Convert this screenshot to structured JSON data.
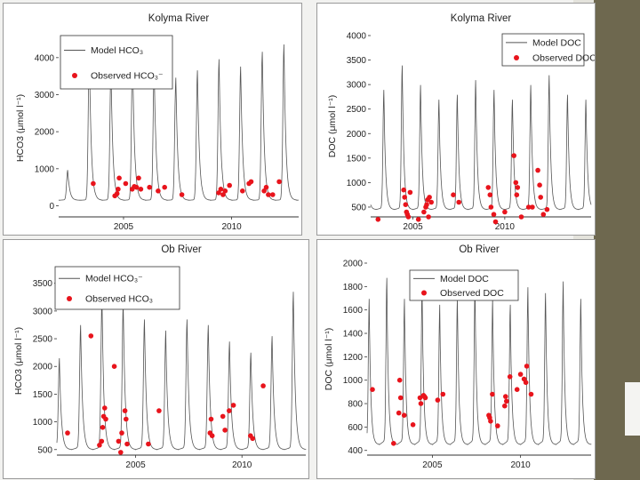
{
  "colors": {
    "model": "#555555",
    "observed": "#e8141c"
  },
  "chart_data": [
    {
      "id": "kolyma-hco3",
      "type": "line",
      "title": "Kolyma River",
      "ylabel": "HCO3 (μmol l⁻¹)",
      "xlabel": "",
      "ylim": [
        -300,
        4500
      ],
      "xlim": [
        2002.0,
        2013.1
      ],
      "yticks": [
        0,
        1000,
        2000,
        3000,
        4000
      ],
      "xticks": [
        2005,
        2010
      ],
      "legend": {
        "position": "top-left",
        "model_label": "Model HCO₃",
        "observed_label": "Observed HCO₃⁻"
      },
      "model": {
        "base": 150,
        "amps": [
          800,
          4000,
          3600,
          4000,
          3600,
          3300,
          3500,
          3800,
          3600,
          4000,
          4200,
          3000
        ]
      },
      "series": [
        {
          "name": "Observed HCO3",
          "points": [
            [
              2003.6,
              600
            ],
            [
              2004.6,
              270
            ],
            [
              2004.7,
              330
            ],
            [
              2004.75,
              450
            ],
            [
              2004.8,
              750
            ],
            [
              2005.1,
              600
            ],
            [
              2005.4,
              450
            ],
            [
              2005.5,
              520
            ],
            [
              2005.6,
              500
            ],
            [
              2005.7,
              750
            ],
            [
              2005.8,
              450
            ],
            [
              2006.2,
              500
            ],
            [
              2006.6,
              400
            ],
            [
              2006.9,
              500
            ],
            [
              2007.7,
              300
            ],
            [
              2009.4,
              350
            ],
            [
              2009.5,
              450
            ],
            [
              2009.6,
              300
            ],
            [
              2009.7,
              400
            ],
            [
              2009.9,
              550
            ],
            [
              2010.5,
              400
            ],
            [
              2010.8,
              600
            ],
            [
              2010.9,
              650
            ],
            [
              2011.5,
              400
            ],
            [
              2011.6,
              500
            ],
            [
              2011.7,
              300
            ],
            [
              2011.9,
              300
            ],
            [
              2012.2,
              650
            ]
          ]
        }
      ]
    },
    {
      "id": "kolyma-doc",
      "type": "line",
      "title": "Kolyma River",
      "ylabel": "DOC (μmol l⁻¹)",
      "xlabel": "",
      "ylim": [
        300,
        4000
      ],
      "xlim": [
        2002.7,
        2014.7
      ],
      "yticks": [
        500,
        1000,
        1500,
        2000,
        2500,
        3000,
        3500,
        4000
      ],
      "xticks": [
        2005,
        2010
      ],
      "legend": {
        "position": "top-right",
        "model_label": "Model DOC",
        "observed_label": "Observed DOC"
      },
      "model": {
        "base": 450,
        "amps": [
          2200,
          2400,
          2900,
          2500,
          2200,
          2300,
          2600,
          2400,
          2200,
          2500,
          2700,
          2300
        ]
      },
      "series": [
        {
          "name": "Observed DOC",
          "points": [
            [
              2003.1,
              250
            ],
            [
              2004.5,
              850
            ],
            [
              2004.55,
              700
            ],
            [
              2004.6,
              550
            ],
            [
              2004.65,
              400
            ],
            [
              2004.7,
              350
            ],
            [
              2004.75,
              300
            ],
            [
              2004.85,
              800
            ],
            [
              2005.3,
              250
            ],
            [
              2005.6,
              400
            ],
            [
              2005.7,
              500
            ],
            [
              2005.75,
              550
            ],
            [
              2005.8,
              650
            ],
            [
              2005.85,
              300
            ],
            [
              2005.9,
              700
            ],
            [
              2006.0,
              600
            ],
            [
              2007.2,
              750
            ],
            [
              2007.5,
              600
            ],
            [
              2009.1,
              900
            ],
            [
              2009.2,
              750
            ],
            [
              2009.25,
              500
            ],
            [
              2009.4,
              350
            ],
            [
              2009.5,
              200
            ],
            [
              2010.0,
              400
            ],
            [
              2010.5,
              1550
            ],
            [
              2010.6,
              1000
            ],
            [
              2010.65,
              750
            ],
            [
              2010.7,
              900
            ],
            [
              2010.9,
              300
            ],
            [
              2011.3,
              500
            ],
            [
              2011.5,
              500
            ],
            [
              2011.8,
              1250
            ],
            [
              2011.9,
              950
            ],
            [
              2011.95,
              700
            ],
            [
              2012.1,
              350
            ],
            [
              2012.3,
              450
            ]
          ]
        }
      ]
    },
    {
      "id": "ob-hco3",
      "type": "line",
      "title": "Ob River",
      "ylabel": "HCO3 (μmol l⁻¹)",
      "xlabel": "",
      "ylim": [
        400,
        3800
      ],
      "xlim": [
        2001.3,
        2013.0
      ],
      "yticks": [
        500,
        1000,
        1500,
        2000,
        2500,
        3000,
        3500
      ],
      "xticks": [
        2005,
        2010
      ],
      "legend": {
        "position": "top-left",
        "model_label": "Model HCO₃⁻",
        "observed_label": "Observed HCO₃"
      },
      "model": {
        "base": 500,
        "amps": [
          1600,
          2200,
          2700,
          2600,
          2300,
          2100,
          2300,
          2200,
          1900,
          1700,
          2000,
          2800
        ]
      },
      "series": [
        {
          "name": "Observed HCO3",
          "points": [
            [
              2001.8,
              800
            ],
            [
              2002.9,
              2550
            ],
            [
              2003.3,
              580
            ],
            [
              2003.4,
              650
            ],
            [
              2003.45,
              900
            ],
            [
              2003.5,
              1100
            ],
            [
              2003.55,
              1250
            ],
            [
              2003.6,
              1050
            ],
            [
              2004.0,
              2000
            ],
            [
              2004.2,
              650
            ],
            [
              2004.3,
              450
            ],
            [
              2004.35,
              800
            ],
            [
              2004.5,
              1200
            ],
            [
              2004.55,
              1050
            ],
            [
              2004.6,
              600
            ],
            [
              2005.6,
              600
            ],
            [
              2006.1,
              1200
            ],
            [
              2008.5,
              800
            ],
            [
              2008.55,
              1050
            ],
            [
              2008.6,
              750
            ],
            [
              2009.1,
              1100
            ],
            [
              2009.2,
              850
            ],
            [
              2009.4,
              1200
            ],
            [
              2009.6,
              1300
            ],
            [
              2010.4,
              750
            ],
            [
              2010.5,
              700
            ],
            [
              2011.0,
              1650
            ]
          ]
        }
      ]
    },
    {
      "id": "ob-doc",
      "type": "line",
      "title": "Ob River",
      "ylabel": "DOC (μmol l⁻¹)",
      "xlabel": "",
      "ylim": [
        360,
        2000
      ],
      "xlim": [
        2001.3,
        2014.0
      ],
      "yticks": [
        400,
        600,
        800,
        1000,
        1200,
        1400,
        1600,
        1800,
        2000
      ],
      "xticks": [
        2005,
        2010
      ],
      "legend": {
        "position": "top-center",
        "model_label": "Model DOC",
        "observed_label": "Observed DOC"
      },
      "model": {
        "base": 450,
        "amps": [
          1200,
          1380,
          1200,
          1300,
          1150,
          1200,
          1300,
          1200,
          1150,
          1300,
          1250,
          1350
        ]
      },
      "series": [
        {
          "name": "Observed DOC",
          "points": [
            [
              2001.6,
              920
            ],
            [
              2002.8,
              460
            ],
            [
              2003.1,
              720
            ],
            [
              2003.15,
              1000
            ],
            [
              2003.2,
              850
            ],
            [
              2003.4,
              700
            ],
            [
              2003.9,
              620
            ],
            [
              2004.3,
              850
            ],
            [
              2004.35,
              800
            ],
            [
              2004.5,
              870
            ],
            [
              2004.55,
              860
            ],
            [
              2004.6,
              850
            ],
            [
              2005.3,
              830
            ],
            [
              2005.6,
              880
            ],
            [
              2008.2,
              700
            ],
            [
              2008.25,
              680
            ],
            [
              2008.3,
              650
            ],
            [
              2008.4,
              880
            ],
            [
              2008.7,
              610
            ],
            [
              2009.1,
              780
            ],
            [
              2009.15,
              860
            ],
            [
              2009.2,
              820
            ],
            [
              2009.4,
              1030
            ],
            [
              2009.8,
              920
            ],
            [
              2010.0,
              1050
            ],
            [
              2010.2,
              1010
            ],
            [
              2010.3,
              980
            ],
            [
              2010.35,
              1120
            ],
            [
              2010.6,
              880
            ]
          ]
        }
      ]
    }
  ]
}
